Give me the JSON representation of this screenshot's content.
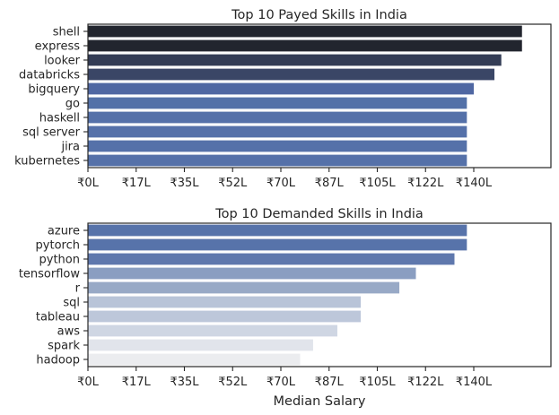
{
  "chart_data": [
    {
      "type": "bar",
      "orientation": "horizontal",
      "title": "Top 10 Payed Skills in India",
      "xlabel": "",
      "ylabel": "",
      "categories": [
        "shell",
        "express",
        "looker",
        "databricks",
        "bigquery",
        "go",
        "haskell",
        "sql server",
        "jira",
        "kubernetes"
      ],
      "values": [
        157.5,
        157.5,
        150.0,
        147.5,
        140.0,
        137.5,
        137.5,
        137.5,
        137.5,
        137.5
      ],
      "colors": [
        "#22252e",
        "#22252e",
        "#333c55",
        "#3a4666",
        "#4f67a2",
        "#5371a8",
        "#5571a9",
        "#5571a9",
        "#5571a9",
        "#5571a9"
      ],
      "xlim": [
        0,
        168
      ],
      "xticks": [
        0,
        17.5,
        35,
        52.5,
        70,
        87.5,
        105,
        122.5,
        140
      ],
      "xtick_labels": [
        "₹0L",
        "₹17L",
        "₹35L",
        "₹52L",
        "₹70L",
        "₹87L",
        "₹105L",
        "₹122L",
        "₹140L"
      ],
      "grid": false,
      "legend": "none"
    },
    {
      "type": "bar",
      "orientation": "horizontal",
      "title": "Top 10 Demanded Skills in India",
      "xlabel": "Median Salary",
      "ylabel": "",
      "categories": [
        "azure",
        "pytorch",
        "python",
        "tensorflow",
        "r",
        "sql",
        "tableau",
        "aws",
        "spark",
        "hadoop"
      ],
      "values": [
        137.5,
        137.5,
        133.0,
        119.0,
        113.0,
        99.0,
        99.0,
        90.5,
        81.7,
        77.0
      ],
      "colors": [
        "#5773aa",
        "#5773aa",
        "#5f78ad",
        "#8a9ec1",
        "#98a9c6",
        "#b8c4d8",
        "#bdc7da",
        "#cfd6e3",
        "#e1e4eb",
        "#ebecef"
      ],
      "xlim": [
        0,
        168
      ],
      "xticks": [
        0,
        17.5,
        35,
        52.5,
        70,
        87.5,
        105,
        122.5,
        140
      ],
      "xtick_labels": [
        "₹0L",
        "₹17L",
        "₹35L",
        "₹52L",
        "₹70L",
        "₹87L",
        "₹105L",
        "₹122L",
        "₹140L"
      ],
      "grid": false,
      "legend": "none"
    }
  ]
}
